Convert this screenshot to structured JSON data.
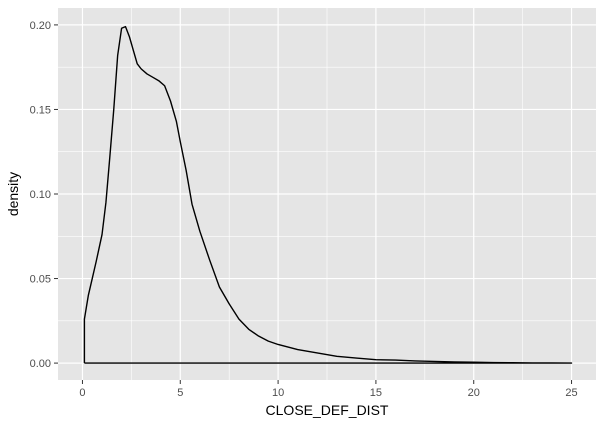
{
  "chart_data": {
    "type": "area",
    "xlabel": "CLOSE_DEF_DIST",
    "ylabel": "density",
    "xlim": [
      -1.25,
      26.25
    ],
    "ylim": [
      -0.01,
      0.21
    ],
    "x_ticks": [
      0,
      5,
      10,
      15,
      20,
      25
    ],
    "x_tick_labels": [
      "0",
      "5",
      "10",
      "15",
      "20",
      "25"
    ],
    "y_ticks": [
      0.0,
      0.05,
      0.1,
      0.15,
      0.2
    ],
    "y_tick_labels": [
      "0.00",
      "0.05",
      "0.10",
      "0.15",
      "0.20"
    ],
    "grid": true,
    "panel_background": "#e5e5e5",
    "grid_color": "#ffffff",
    "line_color": "#000000",
    "series": [
      {
        "x": [
          0.1,
          0.1,
          0.2,
          0.3,
          0.5,
          0.7,
          1.0,
          1.2,
          1.4,
          1.6,
          1.8,
          2.0,
          2.2,
          2.4,
          2.6,
          2.8,
          3.0,
          3.3,
          3.6,
          3.9,
          4.2,
          4.5,
          4.8,
          5.0,
          5.3,
          5.6,
          6.0,
          6.5,
          7.0,
          7.5,
          8.0,
          8.5,
          9.0,
          9.5,
          10.0,
          11.0,
          12.0,
          13.0,
          14.0,
          15.0,
          16.0,
          17.0,
          18.0,
          19.0,
          20.0,
          21.0,
          22.0,
          23.0,
          24.0,
          25.0
        ],
        "y": [
          0.0,
          0.026,
          0.033,
          0.04,
          0.05,
          0.06,
          0.076,
          0.095,
          0.122,
          0.15,
          0.182,
          0.198,
          0.199,
          0.193,
          0.185,
          0.177,
          0.174,
          0.171,
          0.169,
          0.167,
          0.164,
          0.155,
          0.143,
          0.131,
          0.114,
          0.094,
          0.078,
          0.061,
          0.045,
          0.035,
          0.026,
          0.02,
          0.016,
          0.013,
          0.011,
          0.008,
          0.006,
          0.004,
          0.003,
          0.002,
          0.0018,
          0.0013,
          0.001,
          0.0007,
          0.0005,
          0.0003,
          0.0002,
          0.0001,
          5e-05,
          0.0
        ]
      }
    ]
  }
}
